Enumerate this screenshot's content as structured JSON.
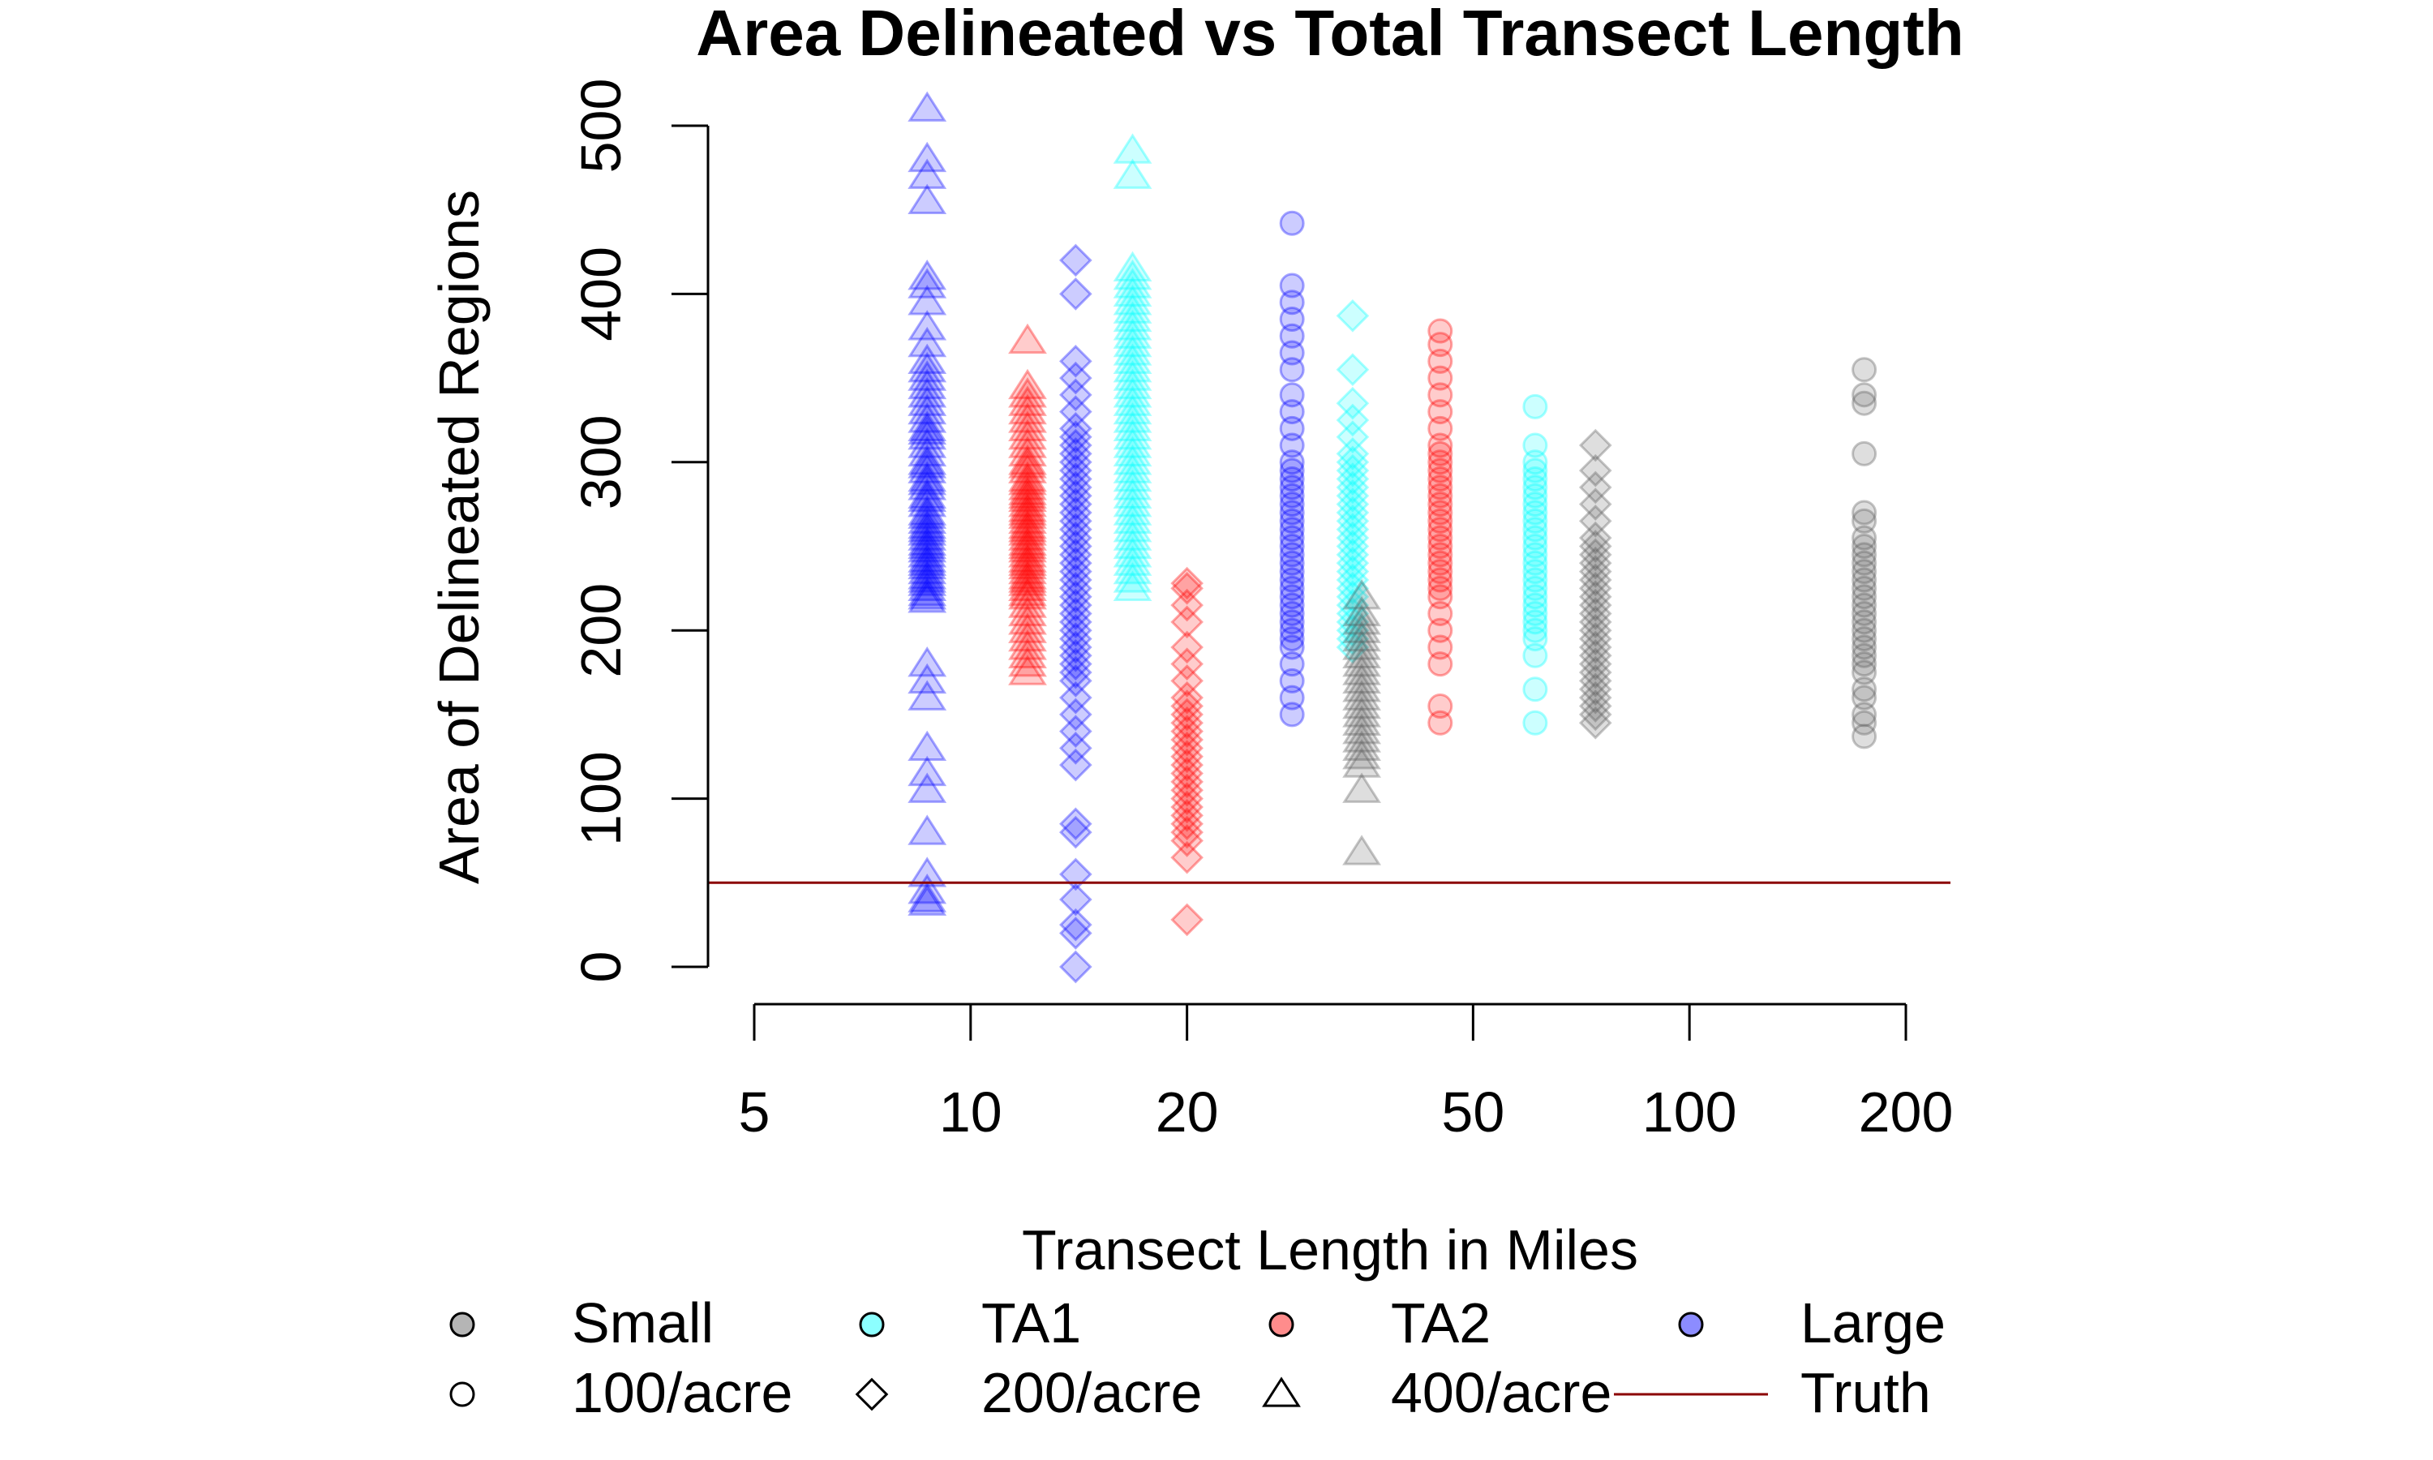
{
  "chart_data": {
    "type": "scatter",
    "title": "Area Delineated vs Total Transect Length",
    "xlabel": "Transect Length in Miles",
    "ylabel": "Area of Delineated Regions",
    "x_scale": "log",
    "xlim": [
      5,
      200
    ],
    "ylim": [
      0,
      500
    ],
    "x_ticks": [
      5,
      10,
      20,
      50,
      100,
      200
    ],
    "y_ticks": [
      0,
      100,
      200,
      300,
      400,
      500
    ],
    "truth_line": 50,
    "colors": {
      "Small": "#5a5a5a",
      "TA1": "#00ffff",
      "TA2": "#ff0000",
      "Large": "#0000ff",
      "Truth": "#8b0000"
    },
    "legend": {
      "position": "bottom",
      "entries": [
        {
          "label": "Small",
          "marker": "circle",
          "color": "#5a5a5a",
          "filled": true
        },
        {
          "label": "TA1",
          "marker": "circle",
          "color": "#00ffff",
          "filled": true
        },
        {
          "label": "TA2",
          "marker": "circle",
          "color": "#ff0000",
          "filled": true
        },
        {
          "label": "Large",
          "marker": "circle",
          "color": "#0000ff",
          "filled": true
        },
        {
          "label": "100/acre",
          "marker": "circle",
          "color": "#000000",
          "filled": false
        },
        {
          "label": "200/acre",
          "marker": "diamond",
          "color": "#000000",
          "filled": false
        },
        {
          "label": "400/acre",
          "marker": "triangle",
          "color": "#000000",
          "filled": false
        },
        {
          "label": "Truth",
          "marker": "line",
          "color": "#8b0000",
          "filled": false
        }
      ]
    },
    "series": [
      {
        "group": "Large",
        "density": "400/acre",
        "shape": "triangle",
        "color": "#0000ff",
        "x": 8.7,
        "values": [
          510,
          480,
          470,
          455,
          410,
          405,
          395,
          380,
          370,
          360,
          355,
          350,
          345,
          340,
          335,
          330,
          325,
          320,
          318,
          315,
          310,
          305,
          300,
          298,
          295,
          290,
          288,
          285,
          280,
          278,
          275,
          270,
          268,
          265,
          262,
          260,
          258,
          255,
          252,
          250,
          248,
          245,
          242,
          240,
          238,
          235,
          232,
          230,
          228,
          225,
          222,
          220,
          218,
          180,
          170,
          160,
          130,
          115,
          105,
          80,
          55,
          45,
          40,
          38
        ]
      },
      {
        "group": "TA2",
        "density": "400/acre",
        "shape": "triangle",
        "color": "#ff0000",
        "x": 12,
        "values": [
          372,
          345,
          340,
          335,
          330,
          325,
          320,
          315,
          310,
          305,
          300,
          298,
          295,
          290,
          288,
          285,
          282,
          280,
          278,
          275,
          272,
          270,
          268,
          265,
          262,
          260,
          258,
          255,
          252,
          250,
          248,
          245,
          242,
          240,
          238,
          235,
          232,
          230,
          228,
          225,
          222,
          220,
          215,
          210,
          205,
          200,
          195,
          190,
          185,
          180,
          175
        ]
      },
      {
        "group": "Large",
        "density": "200/acre",
        "shape": "diamond",
        "color": "#0000ff",
        "x": 14,
        "values": [
          420,
          400,
          360,
          350,
          340,
          330,
          320,
          315,
          310,
          305,
          300,
          295,
          290,
          285,
          280,
          275,
          270,
          265,
          260,
          255,
          250,
          245,
          240,
          235,
          230,
          225,
          220,
          215,
          210,
          205,
          200,
          195,
          190,
          185,
          180,
          175,
          170,
          160,
          150,
          140,
          130,
          120,
          85,
          80,
          55,
          40,
          25,
          20,
          0
        ]
      },
      {
        "group": "TA1",
        "density": "400/acre",
        "shape": "triangle",
        "color": "#00ffff",
        "x": 16.8,
        "values": [
          485,
          470,
          415,
          410,
          405,
          400,
          395,
          390,
          385,
          380,
          375,
          370,
          365,
          360,
          355,
          350,
          345,
          340,
          335,
          330,
          325,
          320,
          315,
          310,
          305,
          300,
          295,
          290,
          285,
          280,
          275,
          270,
          265,
          260,
          255,
          250,
          245,
          240,
          235,
          230,
          225
        ]
      },
      {
        "group": "TA2",
        "density": "200/acre",
        "shape": "diamond",
        "color": "#ff0000",
        "x": 20,
        "values": [
          228,
          225,
          215,
          205,
          190,
          180,
          170,
          160,
          155,
          150,
          145,
          140,
          135,
          130,
          125,
          120,
          115,
          110,
          105,
          100,
          95,
          90,
          85,
          80,
          75,
          65,
          28
        ]
      },
      {
        "group": "Large",
        "density": "100/acre",
        "shape": "circle",
        "color": "#0000ff",
        "x": 28,
        "values": [
          442,
          405,
          395,
          385,
          375,
          365,
          355,
          340,
          330,
          320,
          310,
          300,
          295,
          290,
          285,
          280,
          275,
          270,
          265,
          260,
          255,
          250,
          245,
          240,
          235,
          230,
          225,
          220,
          215,
          210,
          205,
          200,
          195,
          190,
          180,
          170,
          160,
          150
        ]
      },
      {
        "group": "TA1",
        "density": "200/acre",
        "shape": "diamond",
        "color": "#00ffff",
        "x": 34,
        "values": [
          387,
          355,
          335,
          325,
          315,
          305,
          300,
          295,
          290,
          285,
          280,
          275,
          270,
          265,
          260,
          255,
          250,
          245,
          240,
          235,
          230,
          225,
          220,
          215,
          210,
          205,
          200,
          195,
          190
        ]
      },
      {
        "group": "Small",
        "density": "400/acre",
        "shape": "triangle",
        "color": "#5a5a5a",
        "x": 35,
        "values": [
          220,
          210,
          205,
          200,
          195,
          190,
          185,
          180,
          175,
          170,
          165,
          160,
          155,
          150,
          145,
          140,
          135,
          130,
          125,
          120,
          105,
          68
        ]
      },
      {
        "group": "TA2",
        "density": "100/acre",
        "shape": "circle",
        "color": "#ff0000",
        "x": 45,
        "values": [
          378,
          370,
          360,
          350,
          340,
          330,
          320,
          310,
          305,
          300,
          295,
          290,
          285,
          280,
          275,
          270,
          265,
          260,
          255,
          250,
          245,
          240,
          235,
          230,
          225,
          220,
          210,
          200,
          190,
          180,
          155,
          145
        ]
      },
      {
        "group": "TA1",
        "density": "100/acre",
        "shape": "circle",
        "color": "#00ffff",
        "x": 61,
        "values": [
          333,
          310,
          300,
          295,
          290,
          285,
          280,
          275,
          270,
          265,
          260,
          255,
          250,
          245,
          240,
          235,
          230,
          225,
          220,
          215,
          210,
          205,
          200,
          195,
          185,
          165,
          145
        ]
      },
      {
        "group": "Small",
        "density": "200/acre",
        "shape": "diamond",
        "color": "#5a5a5a",
        "x": 74,
        "values": [
          310,
          295,
          285,
          275,
          265,
          255,
          250,
          245,
          240,
          235,
          230,
          225,
          220,
          215,
          210,
          205,
          200,
          195,
          190,
          185,
          180,
          175,
          170,
          165,
          160,
          155,
          150,
          145
        ]
      },
      {
        "group": "Small",
        "density": "100/acre",
        "shape": "circle",
        "color": "#5a5a5a",
        "x": 175,
        "values": [
          355,
          340,
          335,
          305,
          270,
          265,
          255,
          250,
          245,
          240,
          235,
          230,
          225,
          220,
          215,
          210,
          205,
          200,
          195,
          190,
          185,
          180,
          175,
          165,
          160,
          150,
          145,
          137
        ]
      }
    ]
  }
}
